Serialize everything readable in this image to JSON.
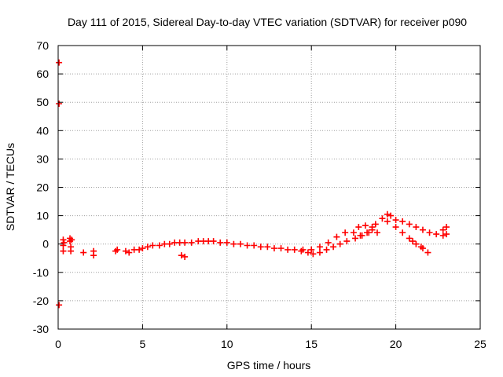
{
  "chart_data": {
    "type": "scatter",
    "title": "Day 111 of 2015, Sidereal Day-to-day VTEC variation (SDTVAR) for receiver p090",
    "xlabel": "GPS time / hours",
    "ylabel": "SDTVAR / TECUs",
    "xlim": [
      0,
      25
    ],
    "ylim": [
      -30,
      70
    ],
    "xticks": [
      0,
      5,
      10,
      15,
      20,
      25
    ],
    "yticks": [
      -30,
      -20,
      -10,
      0,
      10,
      20,
      30,
      40,
      50,
      60,
      70
    ],
    "grid": true,
    "marker_color": "#ff0000",
    "series": [
      {
        "name": "SDTVAR",
        "points": [
          [
            0.05,
            64
          ],
          [
            0.05,
            49.5
          ],
          [
            0.05,
            -21.5
          ],
          [
            0.3,
            1.5
          ],
          [
            0.3,
            -0.5
          ],
          [
            0.3,
            -2.5
          ],
          [
            0.35,
            0.5
          ],
          [
            0.7,
            2
          ],
          [
            0.7,
            1
          ],
          [
            0.75,
            -1
          ],
          [
            0.75,
            -2.5
          ],
          [
            0.8,
            1.5
          ],
          [
            1.5,
            -3
          ],
          [
            2.1,
            -2.5
          ],
          [
            2.1,
            -4
          ],
          [
            3.4,
            -2.5
          ],
          [
            3.5,
            -2
          ],
          [
            4.0,
            -2.5
          ],
          [
            4.2,
            -3
          ],
          [
            4.5,
            -2
          ],
          [
            4.8,
            -2
          ],
          [
            5.0,
            -1.5
          ],
          [
            5.3,
            -1
          ],
          [
            5.6,
            -0.5
          ],
          [
            6.0,
            -0.5
          ],
          [
            6.3,
            0
          ],
          [
            6.6,
            0
          ],
          [
            6.9,
            0.5
          ],
          [
            7.2,
            0.5
          ],
          [
            7.5,
            0.5
          ],
          [
            7.3,
            -4
          ],
          [
            7.5,
            -4.5
          ],
          [
            7.9,
            0.5
          ],
          [
            8.3,
            1
          ],
          [
            8.6,
            1
          ],
          [
            8.9,
            1
          ],
          [
            9.2,
            1
          ],
          [
            9.6,
            0.5
          ],
          [
            10.0,
            0.5
          ],
          [
            10.4,
            0
          ],
          [
            10.8,
            0
          ],
          [
            11.2,
            -0.5
          ],
          [
            11.6,
            -0.5
          ],
          [
            12.0,
            -1
          ],
          [
            12.4,
            -1
          ],
          [
            12.8,
            -1.5
          ],
          [
            13.2,
            -1.5
          ],
          [
            13.6,
            -2
          ],
          [
            14.0,
            -2
          ],
          [
            14.4,
            -2.5
          ],
          [
            14.8,
            -3
          ],
          [
            15.1,
            -3.5
          ],
          [
            15.5,
            -3
          ],
          [
            15.9,
            -2
          ],
          [
            16.3,
            -1
          ],
          [
            16.7,
            0
          ],
          [
            17.1,
            1
          ],
          [
            14.5,
            -2
          ],
          [
            15.0,
            -2
          ],
          [
            15.5,
            -1
          ],
          [
            16.0,
            0.5
          ],
          [
            16.5,
            2.5
          ],
          [
            17.0,
            4
          ],
          [
            17.5,
            4
          ],
          [
            17.9,
            3
          ],
          [
            18.3,
            4
          ],
          [
            18.6,
            6
          ],
          [
            18.8,
            7
          ],
          [
            19.2,
            9
          ],
          [
            19.5,
            10.5
          ],
          [
            19.7,
            10
          ],
          [
            20.0,
            8.5
          ],
          [
            20.4,
            8
          ],
          [
            20.8,
            7
          ],
          [
            21.2,
            6
          ],
          [
            21.6,
            5
          ],
          [
            22.0,
            4
          ],
          [
            22.4,
            3.5
          ],
          [
            22.8,
            3
          ],
          [
            23.0,
            3.5
          ],
          [
            23.0,
            6
          ],
          [
            22.8,
            5
          ],
          [
            19.5,
            8
          ],
          [
            20.0,
            6
          ],
          [
            20.4,
            4
          ],
          [
            20.8,
            2
          ],
          [
            21.2,
            0
          ],
          [
            21.6,
            -1.5
          ],
          [
            21.9,
            -3
          ],
          [
            21.5,
            -1
          ],
          [
            21.0,
            1
          ],
          [
            17.6,
            2
          ],
          [
            18.0,
            3
          ],
          [
            18.4,
            4
          ],
          [
            17.8,
            6
          ],
          [
            18.2,
            6.5
          ],
          [
            18.6,
            5
          ],
          [
            18.9,
            4
          ]
        ]
      }
    ]
  }
}
